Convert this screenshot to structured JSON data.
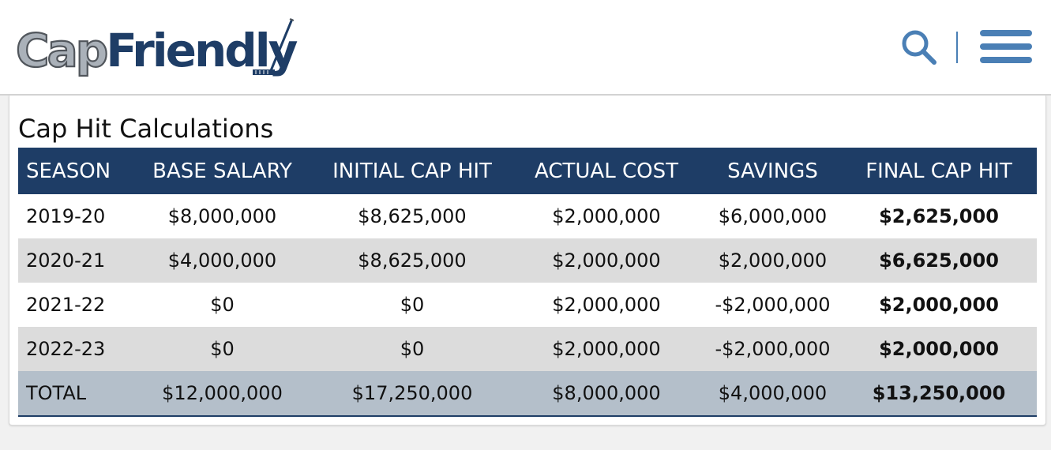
{
  "header": {
    "logo": {
      "part1": "Cap",
      "part2": "Friendly",
      "colors": {
        "part1": "#aab1b9",
        "part1_outline": "#51565c",
        "part2": "#1e3d66"
      }
    },
    "search_icon": "search-icon",
    "menu_icon": "hamburger-menu-icon",
    "icon_color": "#4a7fb5"
  },
  "card": {
    "title": "Cap Hit Calculations",
    "columns": [
      "SEASON",
      "BASE SALARY",
      "INITIAL CAP HIT",
      "ACTUAL COST",
      "SAVINGS",
      "FINAL CAP HIT"
    ],
    "rows": [
      {
        "season": "2019-20",
        "base_salary": "$8,000,000",
        "initial_cap_hit": "$8,625,000",
        "actual_cost": "$2,000,000",
        "savings": "$6,000,000",
        "final_cap_hit": "$2,625,000"
      },
      {
        "season": "2020-21",
        "base_salary": "$4,000,000",
        "initial_cap_hit": "$8,625,000",
        "actual_cost": "$2,000,000",
        "savings": "$2,000,000",
        "final_cap_hit": "$6,625,000"
      },
      {
        "season": "2021-22",
        "base_salary": "$0",
        "initial_cap_hit": "$0",
        "actual_cost": "$2,000,000",
        "savings": "-$2,000,000",
        "final_cap_hit": "$2,000,000"
      },
      {
        "season": "2022-23",
        "base_salary": "$0",
        "initial_cap_hit": "$0",
        "actual_cost": "$2,000,000",
        "savings": "-$2,000,000",
        "final_cap_hit": "$2,000,000"
      }
    ],
    "total": {
      "season": "TOTAL",
      "base_salary": "$12,000,000",
      "initial_cap_hit": "$17,250,000",
      "actual_cost": "$8,000,000",
      "savings": "$4,000,000",
      "final_cap_hit": "$13,250,000"
    },
    "colors": {
      "header_bg": "#1e3d66",
      "row_alt": "#dcdcdc",
      "total_bg": "#b4bfca"
    }
  }
}
